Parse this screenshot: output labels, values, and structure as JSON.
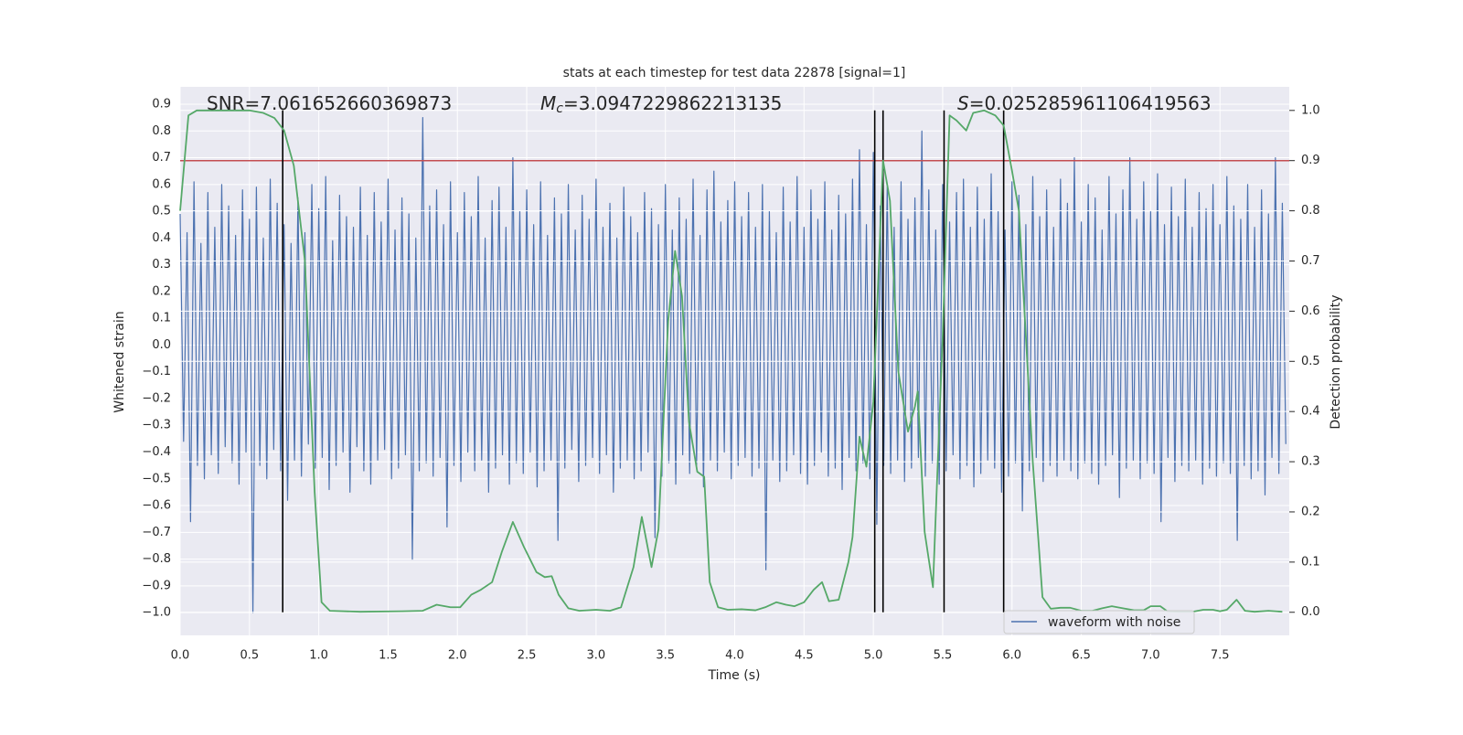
{
  "chart_data": {
    "type": "line",
    "title": "stats at each timestep for test data 22878 [signal=1]",
    "xlabel": "Time (s)",
    "ylabel": "Whitened strain",
    "y2label": "Detection probability",
    "annotations": [
      {
        "text": "SNR=7.061652660369873"
      },
      {
        "symbol": "M",
        "subscript": "c",
        "text": "=3.0947229862213135"
      },
      {
        "symbol": "S",
        "text": "=0.025285961106419563"
      }
    ],
    "xlim": [
      0,
      8.0
    ],
    "ylim": [
      -1.085,
      0.965
    ],
    "y2lim": [
      -0.046,
      1.047
    ],
    "xticks": [
      {
        "value": 0,
        "label": "0.0"
      },
      0.5,
      {
        "value": 1,
        "label": "1.0"
      },
      1.5,
      {
        "value": 2,
        "label": "2.0"
      },
      2.5,
      {
        "value": 3,
        "label": "3.0"
      },
      3.5,
      {
        "value": 4,
        "label": "4.0"
      },
      4.5,
      {
        "value": 5,
        "label": "5.0"
      },
      5.5,
      {
        "value": 6,
        "label": "6.0"
      },
      6.5,
      {
        "value": 7,
        "label": "7.0"
      },
      7.5
    ],
    "yticks": [
      {
        "value": -1,
        "label": "−1.0"
      },
      {
        "value": -0.9,
        "label": "−0.9"
      },
      {
        "value": -0.8,
        "label": "−0.8"
      },
      {
        "value": -0.7,
        "label": "−0.7"
      },
      {
        "value": -0.6,
        "label": "−0.6"
      },
      {
        "value": -0.5,
        "label": "−0.5"
      },
      {
        "value": -0.4,
        "label": "−0.4"
      },
      {
        "value": -0.3,
        "label": "−0.3"
      },
      {
        "value": -0.2,
        "label": "−0.2"
      },
      {
        "value": -0.1,
        "label": "−0.1"
      },
      {
        "value": 0,
        "label": "0.0"
      },
      0.1,
      0.2,
      0.3,
      0.4,
      0.5,
      0.6,
      0.7,
      0.8,
      0.9
    ],
    "y2ticks": [
      {
        "value": 0,
        "label": "0.0"
      },
      0.1,
      0.2,
      0.3,
      0.4,
      0.5,
      0.6,
      0.7,
      0.8,
      0.9,
      {
        "value": 1,
        "label": "1.0"
      }
    ],
    "grid": true,
    "legend": "lower right",
    "series": [
      {
        "name": "waveform with noise",
        "color": "#4c72b0",
        "t0": 0,
        "dt": 0.025,
        "values": [
          0.49,
          -0.36,
          0.42,
          -0.66,
          0.61,
          -0.45,
          0.38,
          -0.5,
          0.57,
          -0.41,
          0.44,
          -0.48,
          0.6,
          -0.38,
          0.52,
          -0.44,
          0.41,
          -0.52,
          0.58,
          -0.4,
          0.47,
          -1.0,
          0.59,
          -0.45,
          0.4,
          -0.5,
          0.62,
          -0.39,
          0.53,
          -0.47,
          0.45,
          -0.58,
          0.38,
          -0.43,
          0.55,
          -0.49,
          0.42,
          -0.37,
          0.6,
          -0.46,
          0.51,
          -0.42,
          0.63,
          -0.54,
          0.39,
          -0.45,
          0.56,
          -0.4,
          0.48,
          -0.55,
          0.44,
          -0.38,
          0.59,
          -0.47,
          0.41,
          -0.52,
          0.57,
          -0.43,
          0.46,
          -0.39,
          0.62,
          -0.5,
          0.43,
          -0.46,
          0.55,
          -0.41,
          0.49,
          -0.8,
          0.4,
          -0.47,
          0.85,
          -0.44,
          0.52,
          -0.49,
          0.58,
          -0.42,
          0.45,
          -0.68,
          0.61,
          -0.45,
          0.42,
          -0.51,
          0.57,
          -0.4,
          0.48,
          -0.47,
          0.63,
          -0.43,
          0.4,
          -0.55,
          0.54,
          -0.46,
          0.59,
          -0.41,
          0.44,
          -0.52,
          0.7,
          -0.44,
          0.5,
          -0.48,
          0.58,
          -0.4,
          0.45,
          -0.53,
          0.61,
          -0.47,
          0.41,
          -0.43,
          0.55,
          -0.73,
          0.49,
          -0.46,
          0.6,
          -0.39,
          0.43,
          -0.51,
          0.56,
          -0.45,
          0.47,
          -0.42,
          0.62,
          -0.48,
          0.44,
          -0.41,
          0.53,
          -0.55,
          0.4,
          -0.46,
          0.59,
          -0.43,
          0.48,
          -0.5,
          0.42,
          -0.47,
          0.57,
          -0.4,
          0.51,
          -0.72,
          0.45,
          -0.49,
          0.6,
          -0.44,
          0.43,
          -0.52,
          0.55,
          -0.41,
          0.47,
          -0.48,
          0.62,
          -0.45,
          0.41,
          -0.53,
          0.58,
          -0.43,
          0.65,
          -0.47,
          0.46,
          -0.4,
          0.54,
          -0.5,
          0.61,
          -0.45,
          0.48,
          -0.42,
          0.57,
          -0.49,
          0.44,
          -0.46,
          0.6,
          -0.84,
          0.5,
          -0.43,
          0.42,
          -0.51,
          0.59,
          -0.47,
          0.46,
          -0.41,
          0.63,
          -0.48,
          0.44,
          -0.52,
          0.58,
          -0.45,
          0.47,
          -0.4,
          0.61,
          -0.49,
          0.43,
          -0.46,
          0.56,
          -0.54,
          0.49,
          -0.42,
          0.62,
          -0.47,
          0.73,
          -0.44,
          0.45,
          -0.5,
          0.72,
          -0.67,
          0.52,
          -0.45,
          0.59,
          -0.48,
          0.44,
          -0.43,
          0.61,
          -0.51,
          0.47,
          -0.46,
          0.55,
          -0.42,
          0.8,
          -0.49,
          0.58,
          -0.44,
          0.43,
          -0.52,
          0.6,
          -0.47,
          0.46,
          -0.41,
          0.57,
          -0.5,
          0.62,
          -0.45,
          0.44,
          -0.53,
          0.59,
          -0.48,
          0.47,
          -0.43,
          0.64,
          -0.46,
          0.5,
          -0.55,
          0.43,
          -0.49,
          0.61,
          -0.44,
          0.56,
          -0.62,
          0.45,
          -0.47,
          0.63,
          -0.42,
          0.48,
          -0.51,
          0.58,
          -0.45,
          0.44,
          -0.49,
          0.62,
          -0.43,
          0.53,
          -0.47,
          0.7,
          -0.5,
          0.46,
          -0.44,
          0.6,
          -0.48,
          0.55,
          -0.52,
          0.43,
          -0.45,
          0.63,
          -0.41,
          0.49,
          -0.57,
          0.58,
          -0.46,
          0.7,
          -0.43,
          0.47,
          -0.5,
          0.61,
          -0.44,
          0.5,
          -0.48,
          0.64,
          -0.66,
          0.45,
          -0.42,
          0.59,
          -0.51,
          0.48,
          -0.45,
          0.62,
          -0.47,
          0.44,
          -0.43,
          0.57,
          -0.52,
          0.51,
          -0.46,
          0.6,
          -0.49,
          0.45,
          -0.44,
          0.63,
          -0.48,
          0.52,
          -0.73,
          0.47,
          -0.45,
          0.6,
          -0.5,
          0.44,
          -0.47,
          0.58,
          -0.56,
          0.49,
          -0.42,
          0.7,
          -0.48,
          0.53,
          -0.37
        ]
      },
      {
        "color": "#55a868",
        "axis": "y2",
        "x": [
          0.0,
          0.06,
          0.12,
          0.3,
          0.5,
          0.6,
          0.68,
          0.75,
          0.82,
          0.9,
          0.97,
          1.02,
          1.08,
          1.3,
          1.6,
          1.75,
          1.85,
          1.95,
          2.02,
          2.1,
          2.17,
          2.25,
          2.32,
          2.4,
          2.48,
          2.57,
          2.63,
          2.68,
          2.73,
          2.8,
          2.88,
          3.0,
          3.1,
          3.18,
          3.27,
          3.33,
          3.4,
          3.45,
          3.52,
          3.57,
          3.62,
          3.67,
          3.73,
          3.78,
          3.82,
          3.88,
          3.95,
          4.05,
          4.15,
          4.22,
          4.3,
          4.37,
          4.43,
          4.5,
          4.57,
          4.63,
          4.68,
          4.75,
          4.82,
          4.85,
          4.9,
          4.95,
          5.0,
          5.07,
          5.12,
          5.18,
          5.25,
          5.3,
          5.32,
          5.37,
          5.43,
          5.5,
          5.55,
          5.6,
          5.67,
          5.72,
          5.8,
          5.88,
          5.94,
          6.0,
          6.05,
          6.1,
          6.15,
          6.22,
          6.28,
          6.35,
          6.42,
          6.5,
          6.58,
          6.65,
          6.72,
          6.8,
          6.88,
          6.95,
          7.0,
          7.07,
          7.12,
          7.2,
          7.3,
          7.38,
          7.45,
          7.5,
          7.55,
          7.62,
          7.68,
          7.75,
          7.85,
          7.95
        ],
        "values": [
          0.8,
          0.99,
          1.0,
          1.0,
          1.0,
          0.995,
          0.985,
          0.96,
          0.89,
          0.7,
          0.24,
          0.02,
          0.003,
          0.001,
          0.002,
          0.003,
          0.015,
          0.01,
          0.01,
          0.035,
          0.045,
          0.06,
          0.12,
          0.18,
          0.13,
          0.08,
          0.07,
          0.072,
          0.035,
          0.008,
          0.003,
          0.005,
          0.003,
          0.01,
          0.09,
          0.19,
          0.09,
          0.165,
          0.58,
          0.72,
          0.63,
          0.38,
          0.28,
          0.27,
          0.06,
          0.01,
          0.005,
          0.006,
          0.004,
          0.01,
          0.02,
          0.015,
          0.012,
          0.02,
          0.045,
          0.06,
          0.022,
          0.025,
          0.1,
          0.15,
          0.35,
          0.29,
          0.42,
          0.9,
          0.82,
          0.48,
          0.36,
          0.41,
          0.44,
          0.16,
          0.05,
          0.55,
          0.99,
          0.98,
          0.96,
          0.995,
          1.0,
          0.99,
          0.97,
          0.88,
          0.8,
          0.55,
          0.3,
          0.03,
          0.007,
          0.009,
          0.009,
          0.003,
          0.003,
          0.008,
          0.012,
          0.008,
          0.004,
          0.004,
          0.012,
          0.012,
          0.002,
          0.001,
          0.001,
          0.005,
          0.005,
          0.002,
          0.005,
          0.025,
          0.003,
          0.001,
          0.003,
          0.001
        ]
      }
    ],
    "threshold": {
      "y2": 0.9,
      "color": "#c44e52"
    },
    "vlines": {
      "x": [
        0.74,
        5.01,
        5.07,
        5.51,
        5.94
      ],
      "y2span": [
        0,
        1
      ],
      "color": "#000000"
    }
  }
}
